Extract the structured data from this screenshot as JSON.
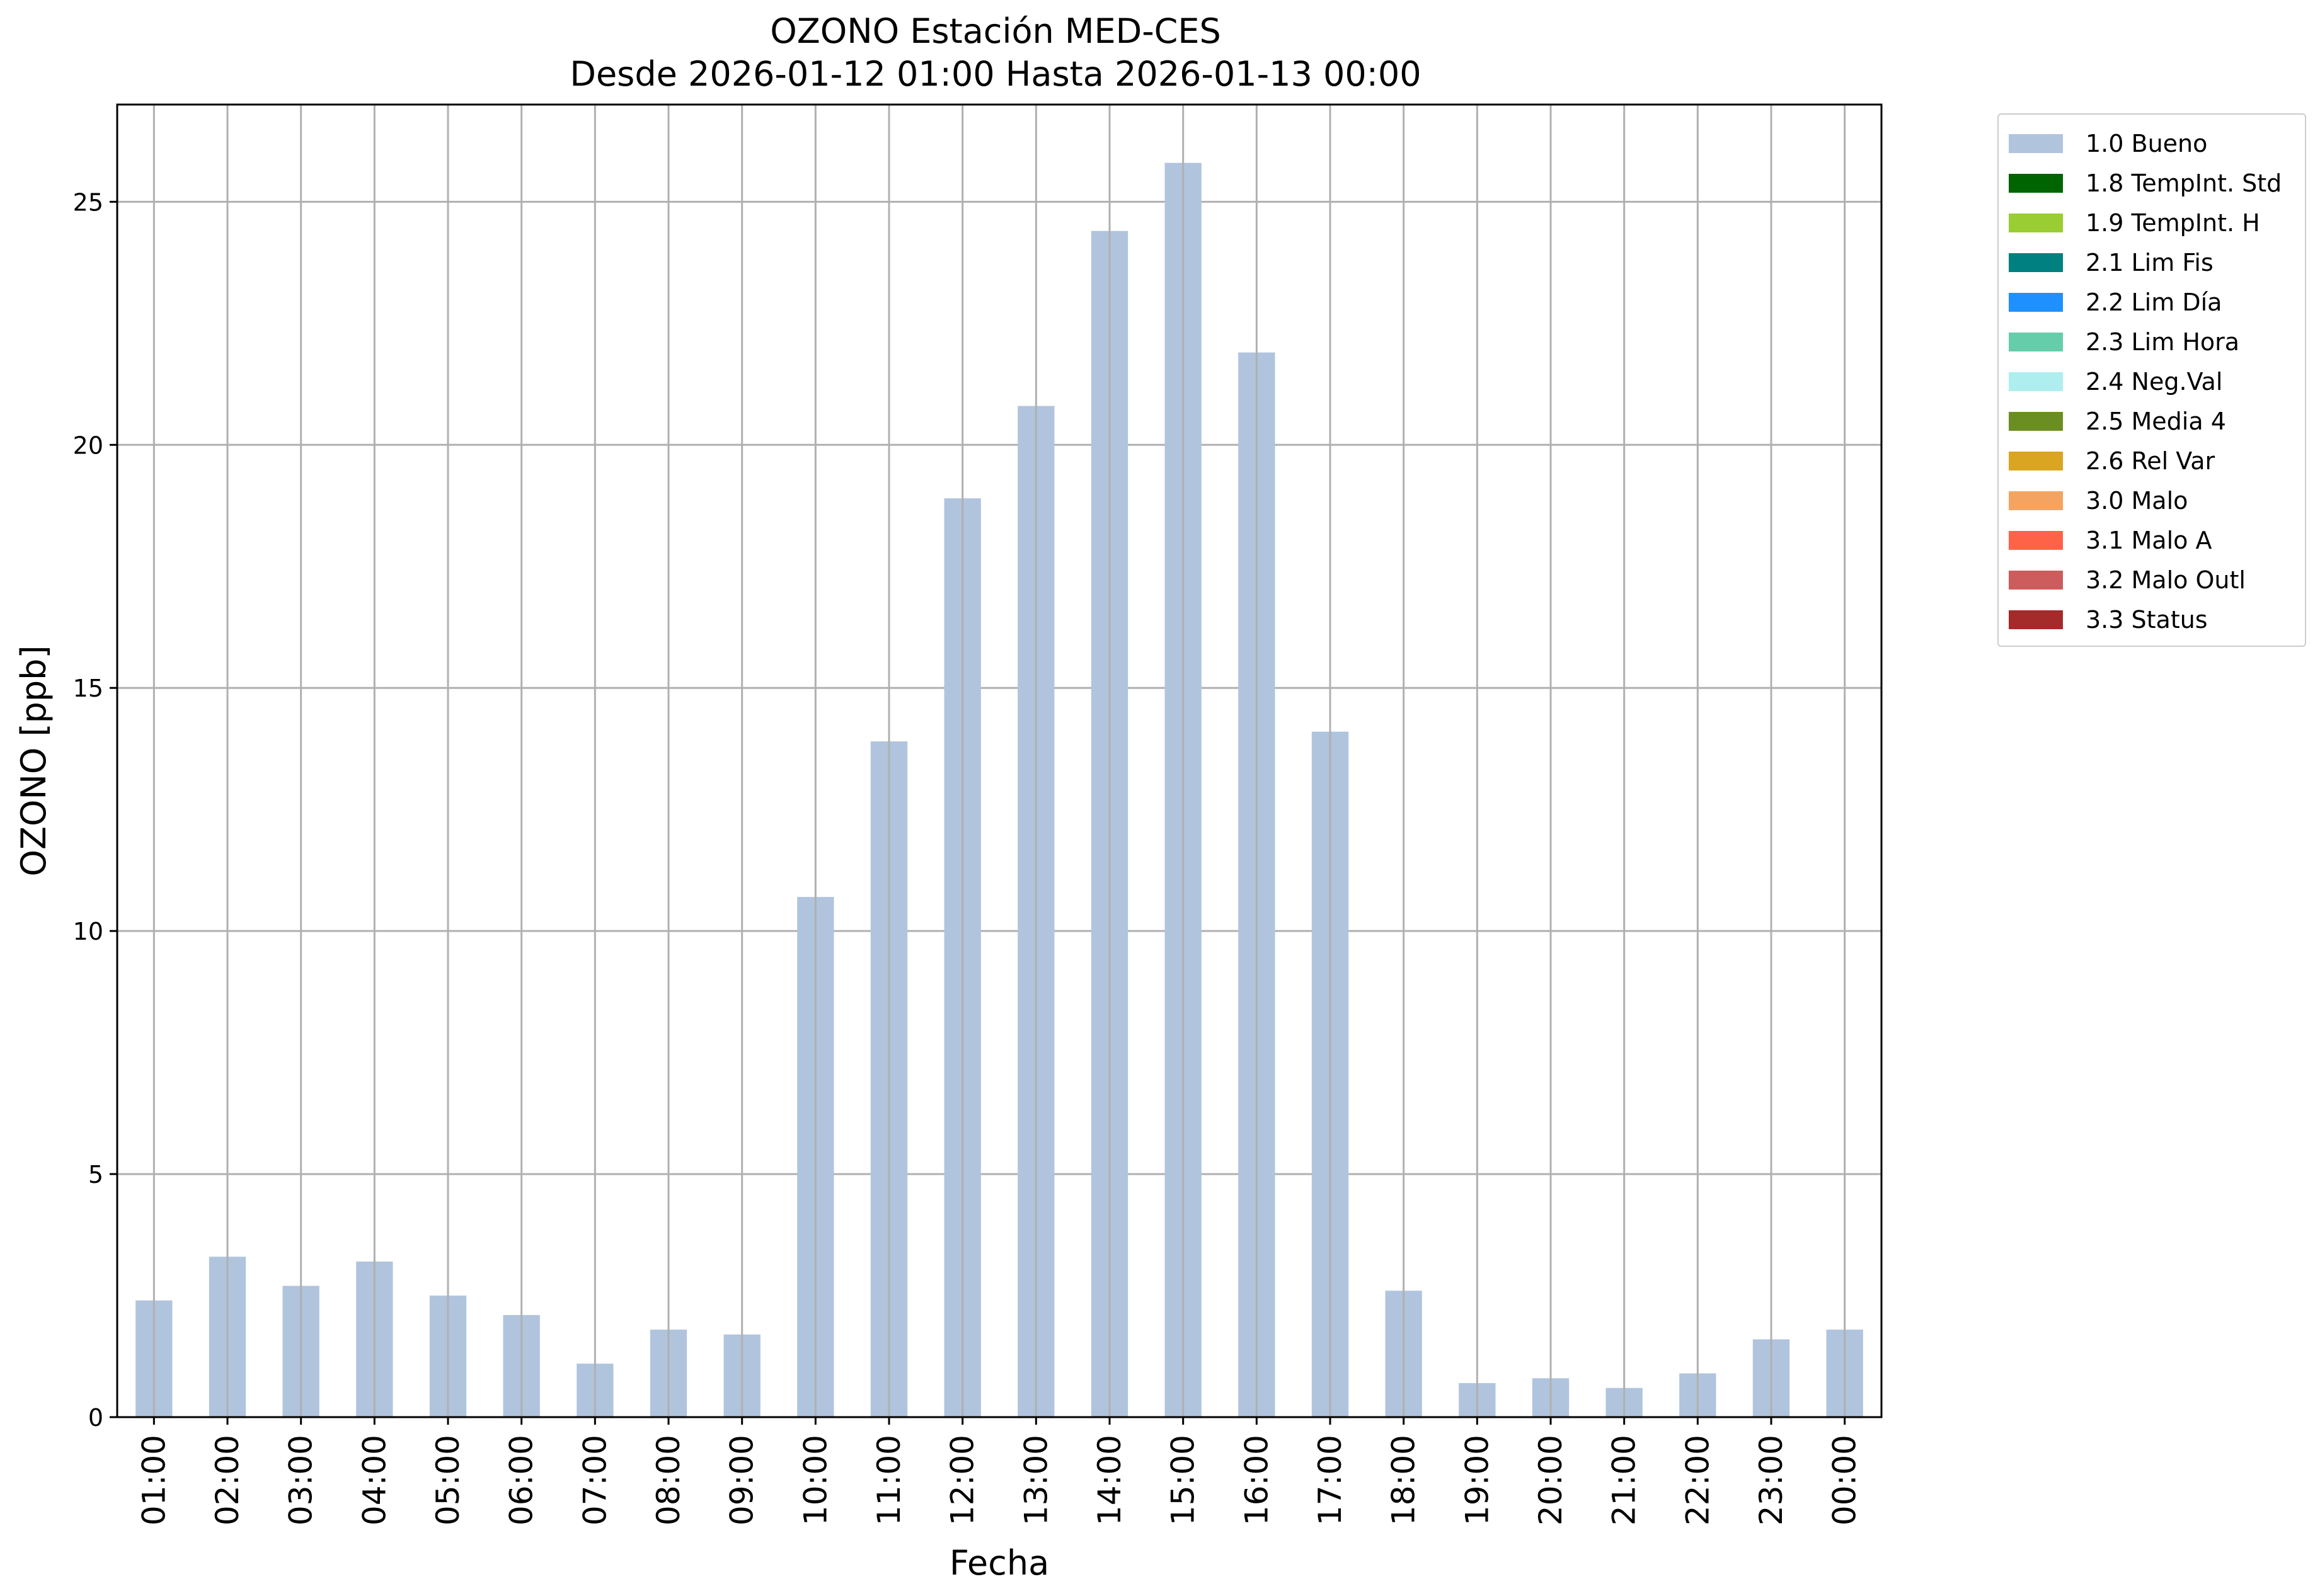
{
  "chart_data": {
    "type": "bar",
    "title_line1": "OZONO Estación MED-CES",
    "title_line2": "Desde 2026-01-12 01:00 Hasta 2026-01-13 00:00",
    "xlabel": "Fecha",
    "ylabel": "OZONO [ppb]",
    "ylim": [
      0,
      27
    ],
    "yticks": [
      0,
      5,
      10,
      15,
      20,
      25
    ],
    "grid": true,
    "legend_position": "outside-right-top",
    "categories": [
      "01:00",
      "02:00",
      "03:00",
      "04:00",
      "05:00",
      "06:00",
      "07:00",
      "08:00",
      "09:00",
      "10:00",
      "11:00",
      "12:00",
      "13:00",
      "14:00",
      "15:00",
      "16:00",
      "17:00",
      "18:00",
      "19:00",
      "20:00",
      "21:00",
      "22:00",
      "23:00",
      "00:00"
    ],
    "series": [
      {
        "name": "1.0 Bueno",
        "color": "#b0c4de",
        "values": [
          2.4,
          3.3,
          2.7,
          3.2,
          2.5,
          2.1,
          1.1,
          1.8,
          1.7,
          10.7,
          13.9,
          18.9,
          20.8,
          24.4,
          25.8,
          21.9,
          14.1,
          2.6,
          0.7,
          0.8,
          0.6,
          0.9,
          1.6,
          1.8
        ]
      }
    ],
    "legend": [
      {
        "label": "1.0 Bueno",
        "color": "#b0c4de"
      },
      {
        "label": "1.8 TempInt. Std",
        "color": "#006400"
      },
      {
        "label": "1.9 TempInt. H",
        "color": "#9acd32"
      },
      {
        "label": "2.1 Lim Fis",
        "color": "#008080"
      },
      {
        "label": "2.2 Lim Día",
        "color": "#1e90ff"
      },
      {
        "label": "2.3 Lim Hora",
        "color": "#66cdaa"
      },
      {
        "label": "2.4 Neg.Val",
        "color": "#afeeee"
      },
      {
        "label": "2.5 Media 4",
        "color": "#6b8e23"
      },
      {
        "label": "2.6 Rel Var",
        "color": "#daa520"
      },
      {
        "label": "3.0 Malo",
        "color": "#f4a460"
      },
      {
        "label": "3.1 Malo A",
        "color": "#ff6347"
      },
      {
        "label": "3.2 Malo Outl",
        "color": "#cd5c5c"
      },
      {
        "label": "3.3 Status",
        "color": "#a52a2a"
      }
    ]
  }
}
